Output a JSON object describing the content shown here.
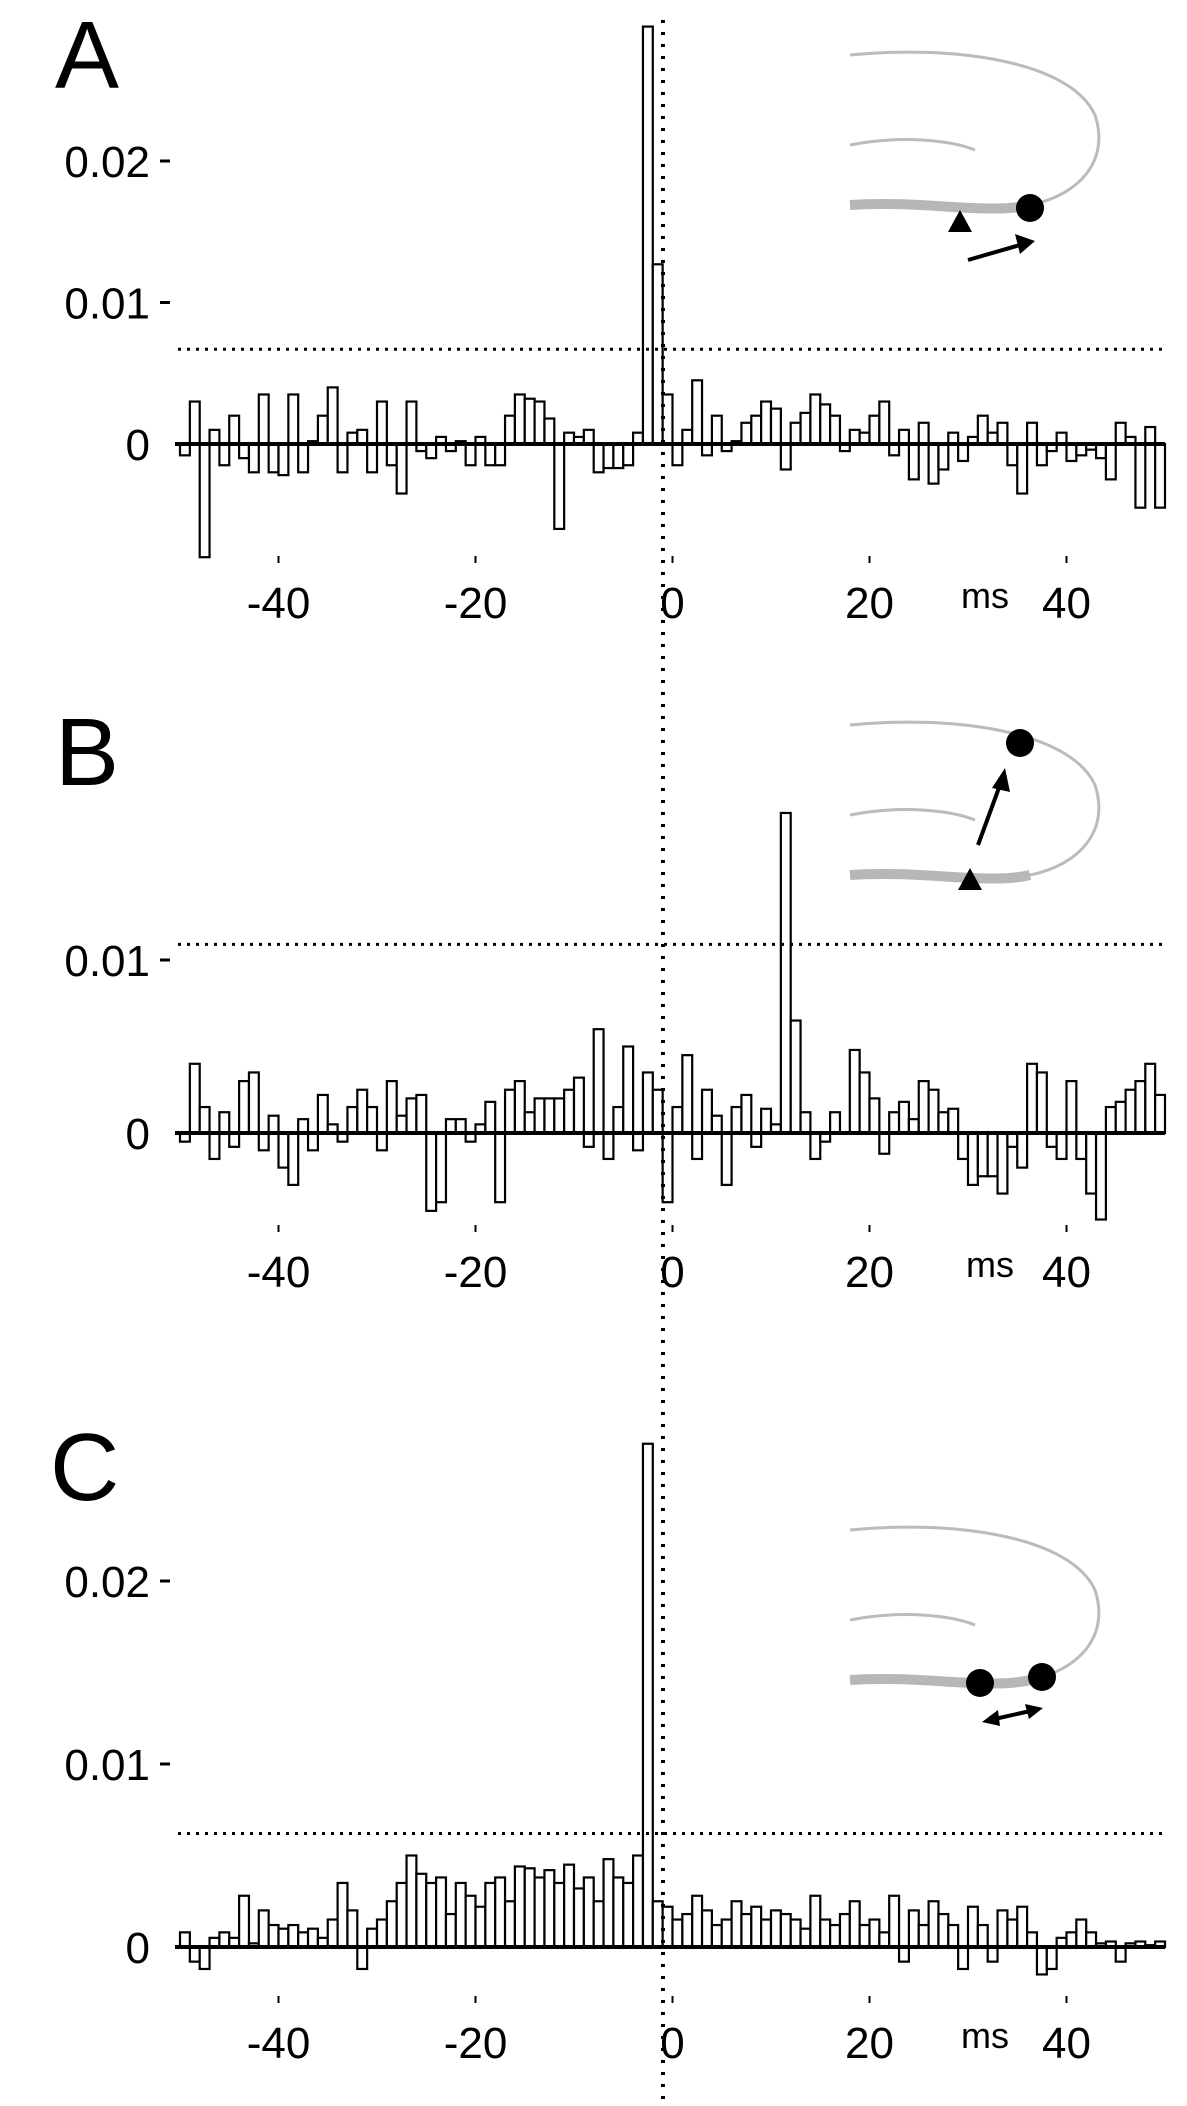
{
  "figure": {
    "unit_label": "ms",
    "zero_line_style": "dotted vertical line at 0 ms across all panels"
  },
  "chart_data": [
    {
      "type": "bar",
      "panel": "A",
      "xlim": [
        -50,
        50
      ],
      "ylim": [
        -0.0085,
        0.03
      ],
      "bin_width": 1,
      "x_ticks": [
        -40,
        -20,
        0,
        20,
        40
      ],
      "x_tick_labels": [
        "-40",
        "-20",
        "0",
        "20",
        "40"
      ],
      "y_ticks": [
        0,
        0.01,
        0.02
      ],
      "y_tick_labels": [
        "0",
        "0.01",
        "0.02"
      ],
      "xlabel": "ms",
      "threshold": 0.0067,
      "inset": "neuron schematic with triangle and dot, arrow pointing right",
      "bin_start": -50,
      "values": [
        -0.0008,
        0.003,
        -0.008,
        0.001,
        -0.0015,
        0.002,
        -0.001,
        -0.002,
        0.0035,
        -0.002,
        -0.0022,
        0.0035,
        -0.002,
        0.0002,
        0.002,
        0.004,
        -0.002,
        0.0008,
        0.001,
        -0.002,
        0.003,
        -0.0015,
        -0.0035,
        0.003,
        -0.0005,
        -0.001,
        0.0005,
        -0.0005,
        0.0002,
        -0.0015,
        0.0005,
        -0.0015,
        -0.0015,
        0.002,
        0.0035,
        0.0032,
        0.003,
        0.0018,
        -0.006,
        0.0008,
        0.0005,
        0.001,
        -0.002,
        -0.0017,
        -0.0017,
        -0.0015,
        0.0008,
        0.0295,
        0.0127,
        0.0035,
        -0.0015,
        0.001,
        0.0045,
        -0.0008,
        0.002,
        -0.0005,
        0.0002,
        0.0015,
        0.002,
        0.003,
        0.0025,
        -0.0018,
        0.0015,
        0.0022,
        0.0035,
        0.0028,
        0.002,
        -0.0005,
        0.001,
        0.0008,
        0.002,
        0.003,
        -0.0008,
        0.001,
        -0.0025,
        0.0015,
        -0.0028,
        -0.0018,
        0.0008,
        -0.0012,
        0.0005,
        0.002,
        0.0008,
        0.0015,
        -0.0015,
        -0.0035,
        0.0015,
        -0.0015,
        -0.0005,
        0.0008,
        -0.0012,
        -0.0008,
        -0.0004,
        -0.001,
        -0.0025,
        0.0015,
        0.0005,
        -0.0045,
        0.0012,
        -0.0045
      ]
    },
    {
      "type": "bar",
      "panel": "B",
      "xlim": [
        -50,
        50
      ],
      "ylim": [
        -0.006,
        0.0185
      ],
      "bin_width": 1,
      "x_ticks": [
        -40,
        -20,
        0,
        20,
        40
      ],
      "x_tick_labels": [
        "-40",
        "-20",
        "0",
        "20",
        "40"
      ],
      "y_ticks": [
        0,
        0.01
      ],
      "y_tick_labels": [
        "0",
        "0.01"
      ],
      "xlabel": "ms",
      "threshold": 0.0109,
      "inset": "neuron schematic with triangle and dot, arrow pointing up",
      "bin_start": -50,
      "values": [
        -0.0005,
        0.004,
        0.0015,
        -0.0015,
        0.0012,
        -0.0008,
        0.003,
        0.0035,
        -0.001,
        0.001,
        -0.002,
        -0.003,
        0.0008,
        -0.001,
        0.0022,
        0.0005,
        -0.0005,
        0.0015,
        0.0025,
        0.0015,
        -0.001,
        0.003,
        0.001,
        0.002,
        0.0022,
        -0.0045,
        -0.004,
        0.0008,
        0.0008,
        -0.0005,
        0.0005,
        0.0018,
        -0.004,
        0.0025,
        0.003,
        0.0012,
        0.002,
        0.002,
        0.002,
        0.0025,
        0.0032,
        -0.0008,
        0.006,
        -0.0015,
        0.0015,
        0.005,
        -0.001,
        0.0035,
        0.0025,
        -0.004,
        0.0015,
        0.0045,
        -0.0015,
        0.0025,
        0.001,
        -0.003,
        0.0015,
        0.0022,
        -0.0008,
        0.0014,
        0.0005,
        0.0185,
        0.0065,
        0.0012,
        -0.0015,
        -0.0005,
        0.0012,
        0.0,
        0.0048,
        0.0035,
        0.002,
        -0.0012,
        0.0012,
        0.0018,
        0.0008,
        0.003,
        0.0025,
        0.0012,
        0.0014,
        -0.0015,
        -0.003,
        -0.0025,
        -0.0025,
        -0.0035,
        -0.0008,
        -0.002,
        0.004,
        0.0035,
        -0.0008,
        -0.0015,
        0.003,
        -0.0015,
        -0.0035,
        -0.005,
        0.0015,
        0.0018,
        0.0025,
        0.003,
        0.004,
        0.0022
      ]
    },
    {
      "type": "bar",
      "panel": "C",
      "xlim": [
        -50,
        50
      ],
      "ylim": [
        -0.0025,
        0.028
      ],
      "bin_width": 1,
      "x_ticks": [
        -40,
        -20,
        0,
        20,
        40
      ],
      "x_tick_labels": [
        "-40",
        "-20",
        "0",
        "20",
        "40"
      ],
      "y_ticks": [
        0,
        0.01,
        0.02
      ],
      "y_tick_labels": [
        "0",
        "0.01",
        "0.02"
      ],
      "xlabel": "ms",
      "threshold": 0.0062,
      "inset": "neuron schematic with two dots joined by a double-headed arrow",
      "bin_start": -50,
      "values": [
        0.0008,
        -0.0008,
        -0.0012,
        0.0005,
        0.0008,
        0.0005,
        0.0028,
        0.0002,
        0.002,
        0.0012,
        0.001,
        0.0012,
        0.0008,
        0.001,
        0.0005,
        0.0015,
        0.0035,
        0.002,
        -0.0012,
        0.001,
        0.0015,
        0.0025,
        0.0035,
        0.005,
        0.004,
        0.0035,
        0.0038,
        0.0018,
        0.0035,
        0.0028,
        0.0022,
        0.0035,
        0.0038,
        0.0025,
        0.0044,
        0.0043,
        0.0038,
        0.0042,
        0.0035,
        0.0045,
        0.0032,
        0.0038,
        0.0025,
        0.0048,
        0.0038,
        0.0035,
        0.005,
        0.0275,
        0.0025,
        0.0022,
        0.0015,
        0.0018,
        0.0028,
        0.002,
        0.0012,
        0.0015,
        0.0025,
        0.0018,
        0.0022,
        0.0015,
        0.002,
        0.0018,
        0.0015,
        0.001,
        0.0028,
        0.0015,
        0.0012,
        0.0018,
        0.0025,
        0.0012,
        0.0015,
        0.0008,
        0.0028,
        -0.0008,
        0.002,
        0.0012,
        0.0025,
        0.0018,
        0.0012,
        -0.0012,
        0.0022,
        0.0012,
        -0.0008,
        0.002,
        0.0015,
        0.0022,
        0.0008,
        -0.0015,
        -0.0012,
        0.0005,
        0.0008,
        0.0015,
        0.0008,
        0.0002,
        0.0003,
        -0.0008,
        0.0002,
        0.0003,
        0.0001,
        0.0003
      ]
    }
  ],
  "panels": [
    {
      "letter": "A"
    },
    {
      "letter": "B"
    },
    {
      "letter": "C"
    }
  ]
}
